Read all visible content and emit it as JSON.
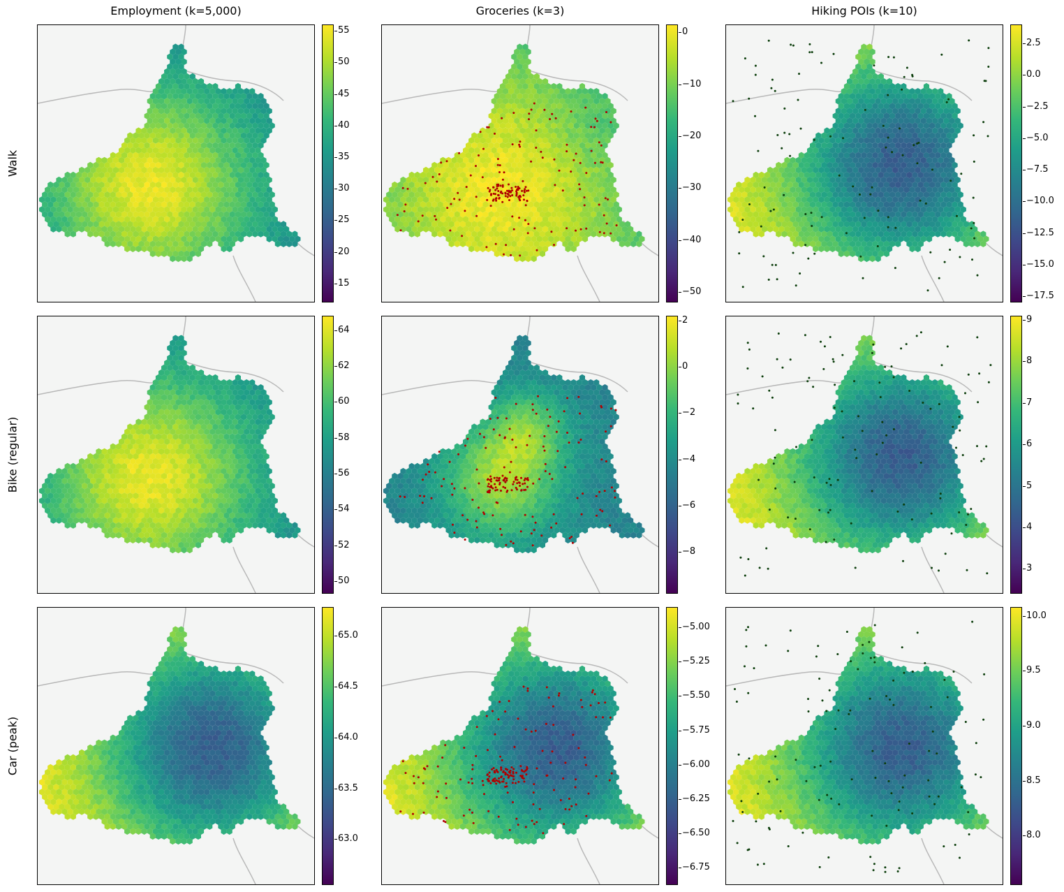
{
  "figure": {
    "columns": [
      "Employment  (k=5,000)",
      "Groceries  (k=3)",
      "Hiking POIs  (k=10)"
    ],
    "rows": [
      "Walk",
      "Bike (regular)",
      "Car (peak)"
    ]
  },
  "colors": {
    "cmap": "viridis",
    "grocery_points": "#b00000",
    "hiking_points": "#0b3d0b",
    "basemap": "#f4f5f4",
    "river": "#b8b8b8"
  },
  "chart_data": [
    {
      "type": "heatmap",
      "title": "Employment  (k=5,000)",
      "row": "Walk",
      "clim": [
        12,
        56
      ],
      "ticks": [
        15,
        20,
        25,
        30,
        35,
        40,
        45,
        50,
        55
      ],
      "tick_labels": [
        "15",
        "20",
        "25",
        "30",
        "35",
        "40",
        "45",
        "50",
        "55"
      ],
      "pattern": "center_high",
      "points": "none"
    },
    {
      "type": "heatmap",
      "title": "Groceries  (k=3)",
      "row": "Walk",
      "clim": [
        -52,
        1.5
      ],
      "ticks": [
        -50,
        -40,
        -30,
        -20,
        -10,
        0
      ],
      "tick_labels": [
        "−50",
        "−40",
        "−30",
        "−20",
        "−10",
        "0"
      ],
      "pattern": "mostly_high",
      "points": "groceries"
    },
    {
      "type": "heatmap",
      "title": "Hiking POIs  (k=10)",
      "row": "Walk",
      "clim": [
        -18,
        4
      ],
      "ticks": [
        -17.5,
        -15,
        -12.5,
        -10,
        -7.5,
        -5,
        -2.5,
        0,
        2.5
      ],
      "tick_labels": [
        "−17.5",
        "−15.0",
        "−12.5",
        "−10.0",
        "−7.5",
        "−5.0",
        "−2.5",
        "0.0",
        "2.5"
      ],
      "pattern": "center_low",
      "points": "hiking"
    },
    {
      "type": "heatmap",
      "title": "Employment  (k=5,000)",
      "row": "Bike (regular)",
      "clim": [
        49.3,
        64.8
      ],
      "ticks": [
        50,
        52,
        54,
        56,
        58,
        60,
        62,
        64
      ],
      "tick_labels": [
        "50",
        "52",
        "54",
        "56",
        "58",
        "60",
        "62",
        "64"
      ],
      "pattern": "center_high",
      "points": "none"
    },
    {
      "type": "heatmap",
      "title": "Groceries  (k=3)",
      "row": "Bike (regular)",
      "clim": [
        -9.8,
        2.2
      ],
      "ticks": [
        -8,
        -6,
        -4,
        -2,
        0,
        2
      ],
      "tick_labels": [
        "−8",
        "−6",
        "−4",
        "−2",
        "0",
        "2"
      ],
      "pattern": "mid_high",
      "points": "groceries"
    },
    {
      "type": "heatmap",
      "title": "Hiking POIs  (k=10)",
      "row": "Bike (regular)",
      "clim": [
        2.4,
        9.1
      ],
      "ticks": [
        3,
        4,
        5,
        6,
        7,
        8,
        9
      ],
      "tick_labels": [
        "3",
        "4",
        "5",
        "6",
        "7",
        "8",
        "9"
      ],
      "pattern": "center_low",
      "points": "hiking"
    },
    {
      "type": "heatmap",
      "title": "Employment  (k=5,000)",
      "row": "Car (peak)",
      "clim": [
        62.55,
        65.28
      ],
      "ticks": [
        63.0,
        63.5,
        64.0,
        64.5,
        65.0
      ],
      "tick_labels": [
        "63.0",
        "63.5",
        "64.0",
        "64.5",
        "65.0"
      ],
      "pattern": "center_low",
      "points": "none"
    },
    {
      "type": "heatmap",
      "title": "Groceries  (k=3)",
      "row": "Car (peak)",
      "clim": [
        -6.88,
        -4.85
      ],
      "ticks": [
        -6.75,
        -6.5,
        -6.25,
        -6.0,
        -5.75,
        -5.5,
        -5.25,
        -5.0
      ],
      "tick_labels": [
        "−6.75",
        "−6.50",
        "−6.25",
        "−6.00",
        "−5.75",
        "−5.50",
        "−5.25",
        "−5.00"
      ],
      "pattern": "center_low",
      "points": "groceries"
    },
    {
      "type": "heatmap",
      "title": "Hiking POIs  (k=10)",
      "row": "Car (peak)",
      "clim": [
        7.55,
        10.08
      ],
      "ticks": [
        8.0,
        8.5,
        9.0,
        9.5,
        10.0
      ],
      "tick_labels": [
        "8.0",
        "8.5",
        "9.0",
        "9.5",
        "10.0"
      ],
      "pattern": "center_low",
      "points": "hiking"
    }
  ]
}
